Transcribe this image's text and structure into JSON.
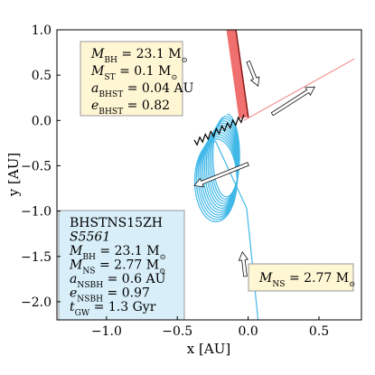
{
  "chart_data": {
    "type": "line",
    "title": "",
    "xlabel": "x [AU]",
    "ylabel": "y [AU]",
    "xlim": [
      -1.35,
      0.8
    ],
    "ylim": [
      -2.2,
      1.0
    ],
    "xticks": [
      -1.0,
      -0.5,
      0.0,
      0.5
    ],
    "xtick_labels": [
      "−1.0",
      "−0.5",
      "0.0",
      "0.5"
    ],
    "yticks": [
      1.0,
      0.5,
      0.0,
      -0.5,
      -1.0,
      -1.5,
      -2.0
    ],
    "ytick_labels": [
      "1.0",
      "0.5",
      "0.0",
      "−0.5",
      "−1.0",
      "−1.5",
      "−2.0"
    ],
    "grid": false,
    "series": [
      {
        "role": "black-hole trajectory (thick)",
        "color": "#f07070",
        "points": [
          [
            -0.12,
            1.02
          ],
          [
            -0.03,
            0.03
          ]
        ]
      },
      {
        "role": "black-hole trajectory (thin)",
        "color": "#f08080",
        "points": [
          [
            -0.03,
            0.0
          ],
          [
            0.75,
            0.68
          ]
        ]
      },
      {
        "role": "star remnant trajectory",
        "color": "#000000",
        "points": [
          [
            -0.38,
            -0.25
          ],
          [
            -0.03,
            0.03
          ]
        ]
      },
      {
        "role": "neutron-star orbit",
        "color": "#40b8e8",
        "center_start": [
          -0.15,
          -0.38
        ],
        "center_end": [
          -0.23,
          -0.68
        ],
        "inner_radius_x": 0.09,
        "outer_radius_x": 0.15,
        "radius_y": 0.45,
        "loops": 12,
        "escape_points": [
          [
            -0.01,
            -0.97
          ],
          [
            0.07,
            -2.2
          ]
        ]
      }
    ],
    "arrows": [
      {
        "from": [
          0.0,
          0.65
        ],
        "to": [
          0.07,
          0.38
        ],
        "color": "#111111"
      },
      {
        "from": [
          0.17,
          0.07
        ],
        "to": [
          0.47,
          0.37
        ],
        "color": "#111111"
      },
      {
        "from": [
          0.0,
          -0.48
        ],
        "to": [
          -0.38,
          -0.72
        ],
        "color": "#111111"
      },
      {
        "from": [
          -0.02,
          -1.72
        ],
        "to": [
          -0.04,
          -1.45
        ],
        "color": "#111111"
      }
    ],
    "annotations": [
      {
        "id": "bh-star-box",
        "bg": "#fff6d4",
        "lines": [
          {
            "sym": "M",
            "sub": "BH",
            "rest": " = 23.1 M",
            "sun": true
          },
          {
            "sym": "M",
            "sub": "ST",
            "rest": " = 0.1 M",
            "sun": true
          },
          {
            "sym": "a",
            "sub": "BHST",
            "rest": " = 0.04 AU",
            "sun": false
          },
          {
            "sym": "e",
            "sub": "BHST",
            "rest": " = 0.82",
            "sun": false
          }
        ]
      },
      {
        "id": "bh-ns-box",
        "bg": "#d8eef8",
        "header": "BHSTNS15ZH",
        "seed": "S5561",
        "lines": [
          {
            "sym": "M",
            "sub": "BH",
            "rest": " = 23.1 M",
            "sun": true
          },
          {
            "sym": "M",
            "sub": "NS",
            "rest": " = 2.77 M",
            "sun": true
          },
          {
            "sym": "a",
            "sub": "NSBH",
            "rest": " = 0.6 AU",
            "sun": false
          },
          {
            "sym": "e",
            "sub": "NSBH",
            "rest": " = 0.97",
            "sun": false
          },
          {
            "sym": "t",
            "sub": "GW",
            "rest": " = 1.3 Gyr",
            "sun": false
          }
        ]
      },
      {
        "id": "ns-box",
        "bg": "#fff6d4",
        "lines": [
          {
            "sym": "M",
            "sub": "NS",
            "rest": " = 2.77 M",
            "sun": true
          }
        ]
      }
    ]
  }
}
